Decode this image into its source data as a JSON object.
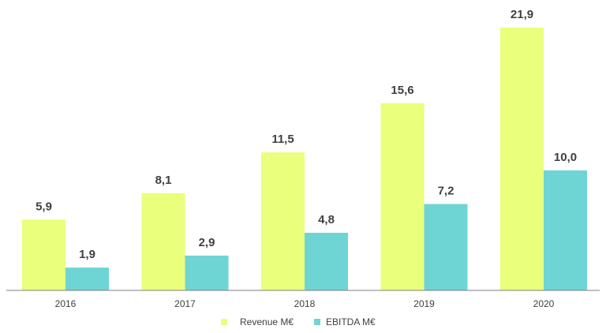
{
  "chart_data": {
    "type": "bar",
    "categories": [
      "2016",
      "2017",
      "2018",
      "2019",
      "2020"
    ],
    "series": [
      {
        "name": "Revenue M€",
        "values": [
          5.9,
          8.1,
          11.5,
          15.6,
          21.9
        ],
        "labels": [
          "5,9",
          "8,1",
          "11,5",
          "15,6",
          "21,9"
        ],
        "color": "#eaff7b"
      },
      {
        "name": "EBITDA M€",
        "values": [
          1.9,
          2.9,
          4.8,
          7.2,
          10.0
        ],
        "labels": [
          "1,9",
          "2,9",
          "4,8",
          "7,2",
          "10,0"
        ],
        "color": "#6fd4d4"
      }
    ],
    "ylim": [
      0,
      22
    ],
    "grid": false,
    "legend_position": "bottom-center",
    "axis_color": "#7f7f7f",
    "label_color": "#404040"
  }
}
